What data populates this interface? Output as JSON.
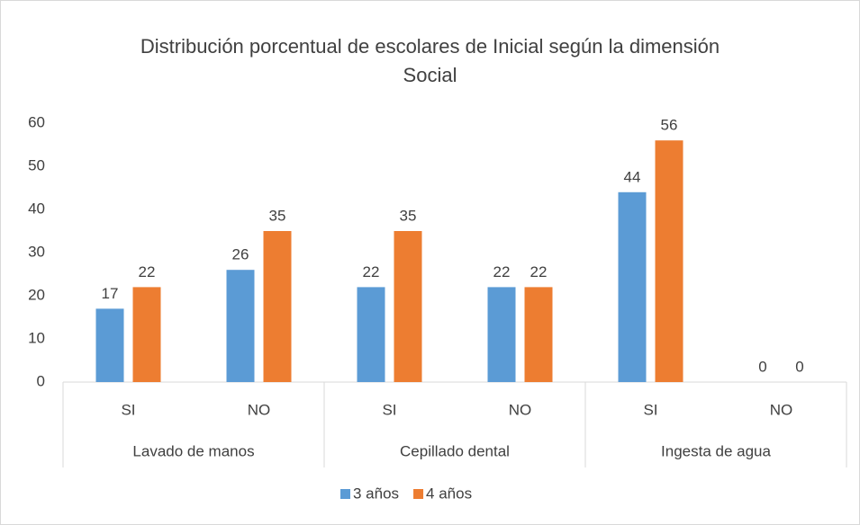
{
  "chart_data": {
    "type": "bar",
    "title": "Distribución porcentual de escolares de Inicial según la dimensión Social",
    "categories": [
      "SI",
      "NO",
      "SI",
      "NO",
      "SI",
      "NO"
    ],
    "category_groups": [
      "Lavado de manos",
      "Cepillado dental",
      "Ingesta de agua"
    ],
    "series": [
      {
        "name": "3 años",
        "color": "#5b9bd5",
        "values": [
          17,
          26,
          22,
          22,
          44,
          0
        ]
      },
      {
        "name": "4 años",
        "color": "#ed7d31",
        "values": [
          22,
          35,
          35,
          22,
          56,
          0
        ]
      }
    ],
    "ylim": [
      0,
      60
    ],
    "yticks": [
      0,
      10,
      20,
      30,
      40,
      50,
      60
    ],
    "grid": false,
    "data_labels": true,
    "legend": "bottom"
  }
}
